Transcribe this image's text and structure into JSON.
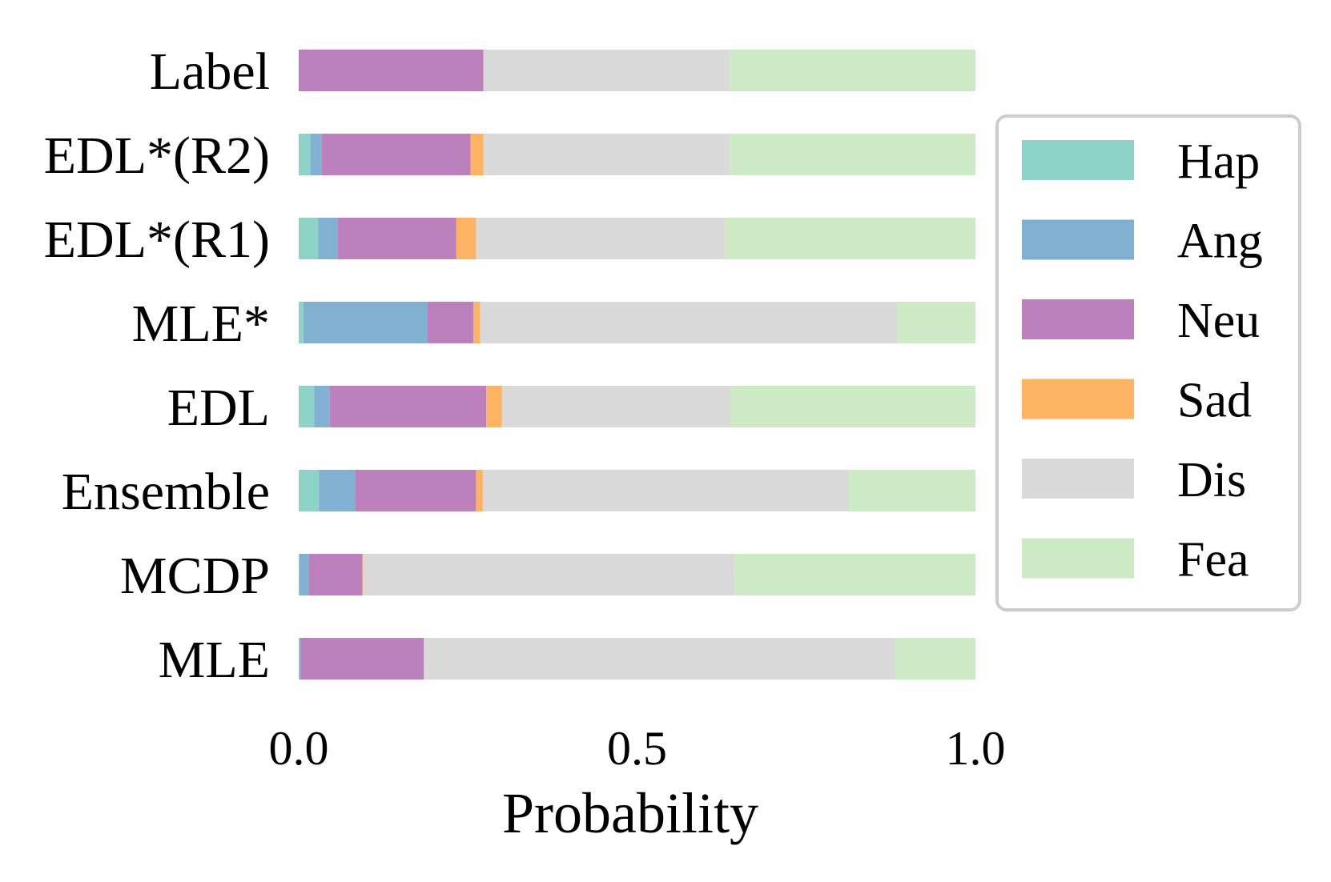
{
  "chart_data": {
    "type": "bar",
    "orientation": "horizontal",
    "stacked": true,
    "title": "",
    "xlabel": "Probability",
    "ylabel": "",
    "xlim": [
      0.0,
      1.0
    ],
    "xticks": [
      "0.0",
      "0.5",
      "1.0"
    ],
    "xtick_values": [
      0.0,
      0.5,
      1.0
    ],
    "grid": false,
    "legend_position": "right",
    "categories": [
      "Label",
      "EDL*(R2)",
      "EDL*(R1)",
      "MLE*",
      "EDL",
      "Ensemble",
      "MCDP",
      "MLE"
    ],
    "series": [
      {
        "name": "Hap",
        "color": "#8dd3c7",
        "values": [
          0.0,
          0.017,
          0.029,
          0.007,
          0.023,
          0.03,
          0.001,
          0.001
        ]
      },
      {
        "name": "Ang",
        "color": "#80b1d3",
        "values": [
          0.0,
          0.017,
          0.029,
          0.183,
          0.023,
          0.053,
          0.014,
          0.002
        ]
      },
      {
        "name": "Neu",
        "color": "#bc80bd",
        "values": [
          0.273,
          0.22,
          0.175,
          0.068,
          0.231,
          0.179,
          0.079,
          0.182
        ]
      },
      {
        "name": "Sad",
        "color": "#fdb462",
        "values": [
          0.0,
          0.019,
          0.029,
          0.01,
          0.023,
          0.01,
          0.001,
          0.0
        ]
      },
      {
        "name": "Dis",
        "color": "#d9d9d9",
        "values": [
          0.364,
          0.364,
          0.368,
          0.616,
          0.338,
          0.541,
          0.549,
          0.697
        ]
      },
      {
        "name": "Fea",
        "color": "#ccebc5",
        "values": [
          0.363,
          0.363,
          0.37,
          0.116,
          0.362,
          0.187,
          0.356,
          0.118
        ]
      }
    ]
  }
}
